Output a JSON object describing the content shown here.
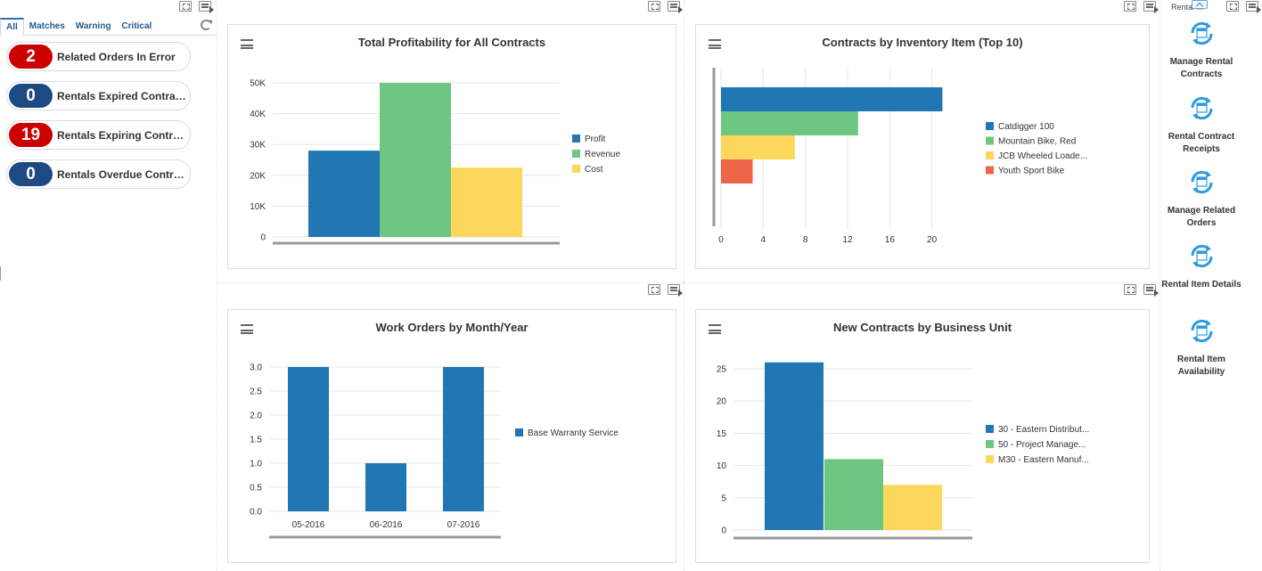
{
  "colors": {
    "blue": "#2077b4",
    "green": "#6dc781",
    "yellow": "#fdd75b",
    "orange": "#ee6648",
    "badge_red": "#cc0000",
    "badge_blue": "#1d4a82",
    "tab_blue": "#1e5a8e",
    "springboard_icon": "#2e9be0"
  },
  "tabs": [
    {
      "label": "All"
    },
    {
      "label": "Matches"
    },
    {
      "label": "Warning"
    },
    {
      "label": "Critical"
    }
  ],
  "watchlist": [
    {
      "count": "2",
      "label": "Related Orders In Error",
      "status": "critical"
    },
    {
      "count": "0",
      "label": "Rentals Expired Contracts",
      "status": "normal"
    },
    {
      "count": "19",
      "label": "Rentals Expiring Contracts",
      "status": "critical"
    },
    {
      "count": "0",
      "label": "Rentals Overdue Contracts",
      "status": "normal"
    }
  ],
  "panels": {
    "profitability": {
      "title": "Total Profitability for All Contracts",
      "chart_data": {
        "type": "bar",
        "categories": [
          "Profit",
          "Revenue",
          "Cost"
        ],
        "values": [
          28000,
          50000,
          22500
        ],
        "colors": [
          "#2077b4",
          "#6dc781",
          "#fdd75b"
        ],
        "yticks": [
          "0",
          "10K",
          "20K",
          "30K",
          "40K",
          "50K"
        ],
        "ylim": [
          0,
          50000
        ],
        "legend": [
          "Profit",
          "Revenue",
          "Cost"
        ]
      }
    },
    "inventory": {
      "title": "Contracts by Inventory Item (Top 10)",
      "chart_data": {
        "type": "bar",
        "orientation": "horizontal",
        "categories": [
          "Catdigger 100",
          "Mountain Bike, Red",
          "JCB Wheeled Loade...",
          "Youth Sport Bike"
        ],
        "values": [
          21,
          13,
          7,
          3
        ],
        "colors": [
          "#2077b4",
          "#6dc781",
          "#fdd75b",
          "#ee6648"
        ],
        "xticks": [
          "0",
          "4",
          "8",
          "12",
          "16",
          "20"
        ],
        "xlim": [
          0,
          21
        ],
        "legend": [
          "Catdigger 100",
          "Mountain Bike, Red",
          "JCB Wheeled Loade...",
          "Youth Sport Bike"
        ]
      }
    },
    "workorders": {
      "title": "Work Orders by Month/Year",
      "chart_data": {
        "type": "bar",
        "categories": [
          "05-2016",
          "06-2016",
          "07-2016"
        ],
        "values": [
          3.0,
          1.0,
          3.0
        ],
        "colors": [
          "#2077b4",
          "#2077b4",
          "#2077b4"
        ],
        "yticks": [
          "0.0",
          "0.5",
          "1.0",
          "1.5",
          "2.0",
          "2.5",
          "3.0"
        ],
        "ylim": [
          0,
          3.0
        ],
        "legend": [
          "Base Warranty Service"
        ]
      }
    },
    "newcontracts": {
      "title": "New Contracts by Business Unit",
      "chart_data": {
        "type": "bar",
        "categories": [
          "30 - Eastern Distribut...",
          "50 - Project Manage...",
          "M30 - Eastern Manuf..."
        ],
        "values": [
          26,
          11,
          7
        ],
        "colors": [
          "#2077b4",
          "#6dc781",
          "#fdd75b"
        ],
        "yticks": [
          "0",
          "5",
          "10",
          "15",
          "20",
          "25"
        ],
        "ylim": [
          0,
          25
        ],
        "legend": [
          "30 - Eastern Distribut...",
          "50 - Project Manage...",
          "M30 - Eastern Manuf..."
        ]
      }
    }
  },
  "springboard": {
    "header": "Rental ...",
    "items": [
      {
        "label": "Manage Rental Contracts"
      },
      {
        "label": "Rental Contract Receipts"
      },
      {
        "label": "Manage Related Orders"
      },
      {
        "label": "Rental Item Details"
      },
      {
        "label": "Rental Item Availability"
      }
    ]
  }
}
